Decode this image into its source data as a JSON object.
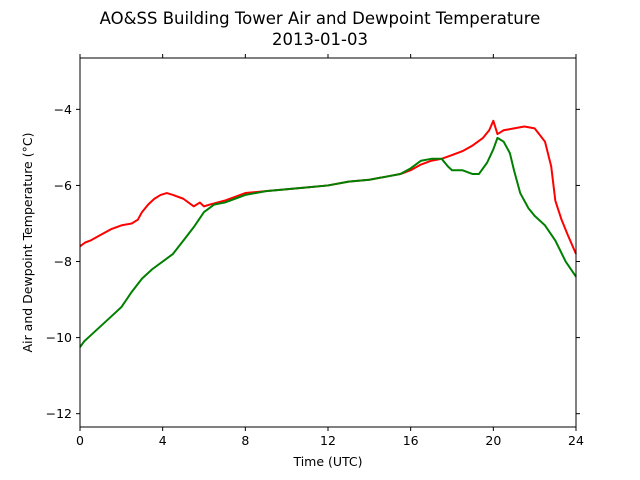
{
  "chart_data": {
    "type": "line",
    "title": "AO&SS Building Tower Air and Dewpoint Temperature",
    "subtitle": "2013-01-03",
    "xlabel": "Time (UTC)",
    "ylabel": "Air and Dewpoint Temperature (°C)",
    "xlim": [
      0,
      24
    ],
    "ylim": [
      -12.35,
      -2.65
    ],
    "xticks": [
      0,
      4,
      8,
      12,
      16,
      20,
      24
    ],
    "yticks": [
      -12,
      -10,
      -8,
      -6,
      -4
    ],
    "grid": false,
    "legend": "none",
    "series": [
      {
        "color": "#ff0000",
        "x": [
          0,
          0.25,
          0.5,
          1,
          1.5,
          2,
          2.5,
          2.8,
          3,
          3.3,
          3.6,
          3.9,
          4.2,
          4.5,
          5,
          5.5,
          5.8,
          6,
          6.3,
          7,
          8,
          9,
          10,
          11,
          12,
          13,
          14,
          15,
          15.5,
          16,
          16.5,
          17,
          17.5,
          18,
          18.5,
          19,
          19.5,
          19.8,
          20,
          20.2,
          20.5,
          21,
          21.5,
          22,
          22.5,
          22.8,
          23,
          23.3,
          23.6,
          24
        ],
        "y": [
          -7.6,
          -7.5,
          -7.45,
          -7.3,
          -7.15,
          -7.05,
          -7.0,
          -6.9,
          -6.7,
          -6.5,
          -6.35,
          -6.25,
          -6.2,
          -6.25,
          -6.35,
          -6.55,
          -6.45,
          -6.55,
          -6.5,
          -6.4,
          -6.2,
          -6.15,
          -6.1,
          -6.05,
          -6.0,
          -5.9,
          -5.85,
          -5.75,
          -5.7,
          -5.6,
          -5.45,
          -5.35,
          -5.3,
          -5.2,
          -5.1,
          -4.95,
          -4.75,
          -4.55,
          -4.3,
          -4.65,
          -4.55,
          -4.5,
          -4.45,
          -4.5,
          -4.85,
          -5.5,
          -6.4,
          -6.9,
          -7.3,
          -7.8
        ]
      },
      {
        "color": "#008000",
        "x": [
          0,
          0.2,
          0.5,
          1,
          1.5,
          2,
          2.5,
          3,
          3.5,
          4,
          4.5,
          5,
          5.5,
          6,
          6.5,
          7,
          7.5,
          8,
          9,
          10,
          11,
          12,
          13,
          14,
          15,
          15.5,
          16,
          16.5,
          17,
          17.5,
          17.8,
          18,
          18.5,
          19,
          19.3,
          19.7,
          20,
          20.2,
          20.5,
          20.8,
          21,
          21.3,
          21.7,
          22,
          22.5,
          23,
          23.5,
          24
        ],
        "y": [
          -10.25,
          -10.1,
          -9.95,
          -9.7,
          -9.45,
          -9.2,
          -8.8,
          -8.45,
          -8.2,
          -8.0,
          -7.8,
          -7.45,
          -7.1,
          -6.7,
          -6.5,
          -6.45,
          -6.35,
          -6.25,
          -6.15,
          -6.1,
          -6.05,
          -6.0,
          -5.9,
          -5.85,
          -5.75,
          -5.7,
          -5.55,
          -5.35,
          -5.3,
          -5.3,
          -5.5,
          -5.6,
          -5.6,
          -5.7,
          -5.7,
          -5.4,
          -5.05,
          -4.75,
          -4.85,
          -5.15,
          -5.6,
          -6.2,
          -6.6,
          -6.8,
          -7.05,
          -7.45,
          -8.0,
          -8.4
        ]
      }
    ]
  }
}
